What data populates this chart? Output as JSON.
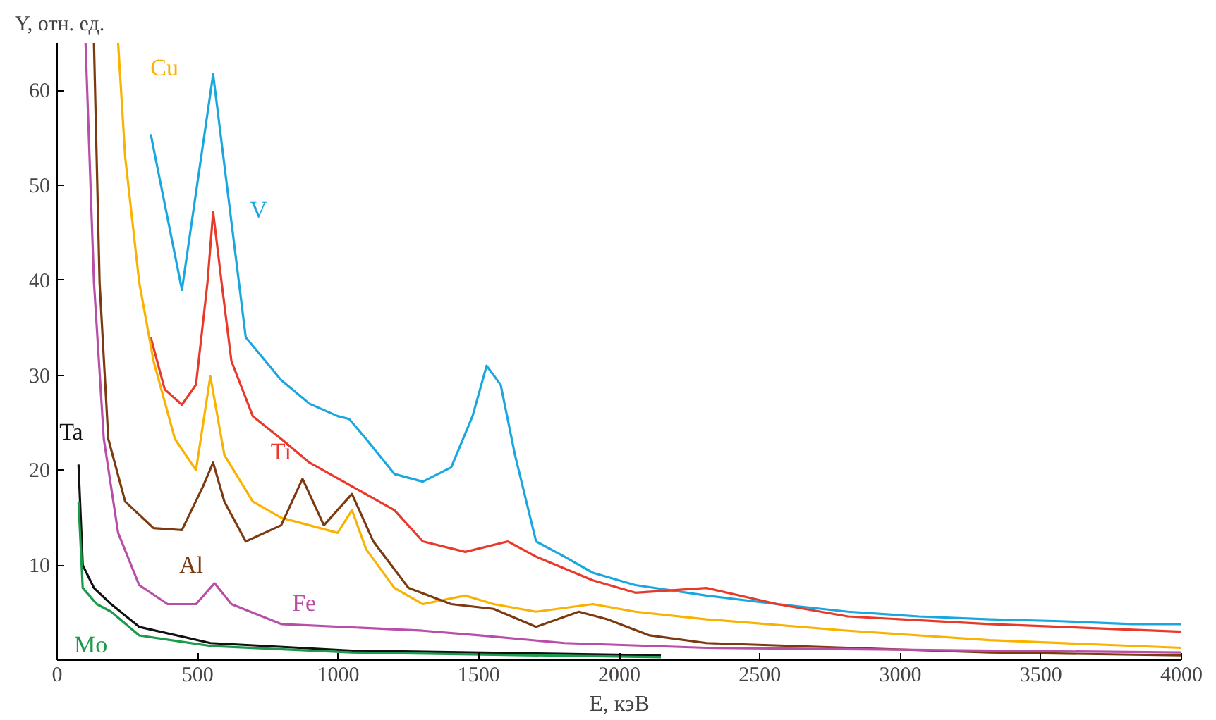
{
  "chart_data": {
    "type": "line",
    "ylabel": "Y, отн. ед.",
    "xlabel": "E, кэВ",
    "xlim": [
      0,
      4000
    ],
    "ylim": [
      0,
      65
    ],
    "xticks": [
      0,
      500,
      1000,
      1500,
      2000,
      2500,
      3000,
      3500,
      4000
    ],
    "yticks": [
      10,
      20,
      30,
      40,
      50,
      60
    ],
    "grid": false,
    "legend": false,
    "marker": "none",
    "line_style": "solid",
    "series": [
      {
        "name": "V",
        "color": "#1aa7e0",
        "x": [
          333,
          444,
          555,
          671,
          797,
          898,
          998,
          1039,
          1099,
          1200,
          1301,
          1402,
          1478,
          1528,
          1578,
          1629,
          1704,
          1805,
          1906,
          2057,
          2310,
          2562,
          2814,
          3066,
          3318,
          3570,
          3822,
          4000
        ],
        "values": [
          55.4,
          39,
          61.7,
          34,
          29.5,
          27,
          25.7,
          25.4,
          23.3,
          19.6,
          18.8,
          20.3,
          25.7,
          31,
          29,
          21.6,
          12.5,
          10.9,
          9.2,
          7.9,
          6.8,
          5.9,
          5.1,
          4.6,
          4.3,
          4.1,
          3.8,
          3.8
        ]
      },
      {
        "name": "Ti",
        "color": "#e8392a",
        "x": [
          333,
          383,
          444,
          494,
          535,
          555,
          585,
          620,
          696,
          797,
          898,
          1049,
          1200,
          1301,
          1452,
          1604,
          1704,
          1906,
          2057,
          2310,
          2562,
          2814,
          3318,
          4000
        ],
        "values": [
          34,
          28.5,
          26.9,
          29,
          39.8,
          47.2,
          39.8,
          31.5,
          25.7,
          23.3,
          20.8,
          18.3,
          15.8,
          12.5,
          11.4,
          12.5,
          10.9,
          8.4,
          7.1,
          7.6,
          5.9,
          4.6,
          3.8,
          3.0
        ]
      },
      {
        "name": "Cu",
        "color": "#f9b200",
        "x": [
          217,
          242,
          292,
          343,
          419,
          494,
          545,
          595,
          696,
          797,
          898,
          998,
          1049,
          1099,
          1200,
          1301,
          1452,
          1553,
          1704,
          1906,
          2057,
          2310,
          2814,
          3318,
          4000
        ],
        "values": [
          65,
          53,
          39.8,
          31.5,
          23.3,
          20,
          29.9,
          21.6,
          16.7,
          15,
          14.2,
          13.4,
          15.8,
          11.7,
          7.6,
          5.9,
          6.8,
          5.9,
          5.1,
          5.9,
          5.1,
          4.3,
          3.1,
          2.1,
          1.3
        ]
      },
      {
        "name": "Al",
        "color": "#7b3a10",
        "x": [
          131,
          151,
          182,
          242,
          343,
          444,
          519,
          555,
          595,
          671,
          797,
          873,
          949,
          1049,
          1125,
          1250,
          1402,
          1553,
          1704,
          1856,
          1957,
          2108,
          2310,
          2814,
          3318,
          4000
        ],
        "values": [
          65,
          39.8,
          23.3,
          16.7,
          13.9,
          13.7,
          18.3,
          20.8,
          16.7,
          12.5,
          14.2,
          19.1,
          14.2,
          17.5,
          12.5,
          7.6,
          5.9,
          5.4,
          3.5,
          5.1,
          4.3,
          2.6,
          1.8,
          1.3,
          0.8,
          0.5
        ]
      },
      {
        "name": "Fe",
        "color": "#b94ea8",
        "x": [
          101,
          131,
          166,
          217,
          292,
          393,
          494,
          560,
          620,
          797,
          1301,
          1503,
          1805,
          2310,
          4000
        ],
        "values": [
          65,
          39.8,
          23.3,
          13.4,
          7.9,
          5.9,
          5.9,
          8.1,
          5.9,
          3.8,
          3.1,
          2.6,
          1.8,
          1.3,
          0.8
        ]
      },
      {
        "name": "Ta",
        "color": "#111111",
        "x": [
          76,
          91,
          131,
          192,
          292,
          545,
          1049,
          2148
        ],
        "values": [
          20.6,
          10,
          7.6,
          5.9,
          3.5,
          1.8,
          1.0,
          0.5
        ]
      },
      {
        "name": "Mo",
        "color": "#1a9a4a",
        "x": [
          76,
          91,
          141,
          192,
          292,
          545,
          1049,
          2148
        ],
        "values": [
          16.7,
          7.6,
          5.9,
          5.1,
          2.6,
          1.5,
          0.8,
          0.3
        ]
      }
    ]
  }
}
